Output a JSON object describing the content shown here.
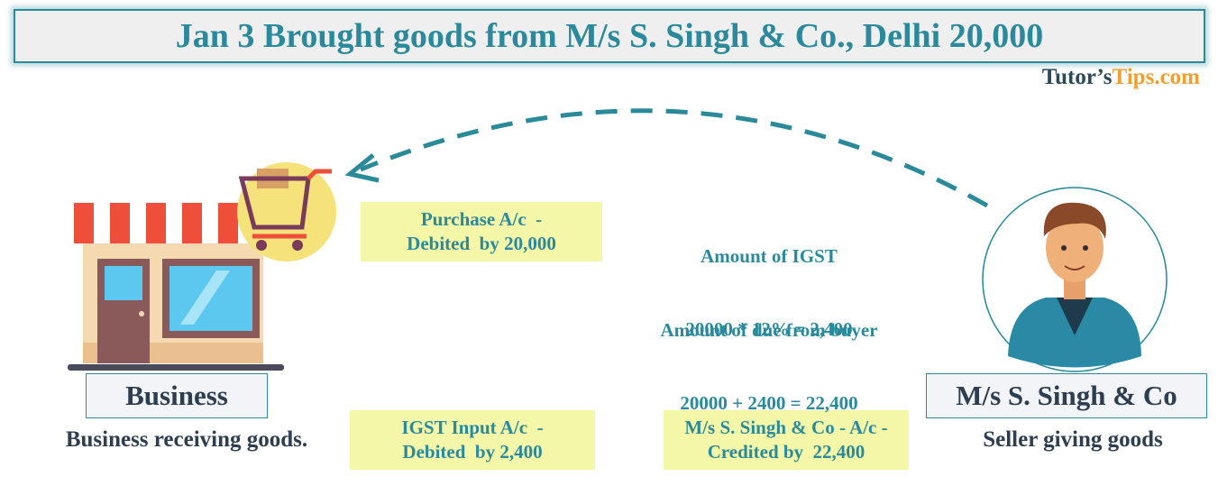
{
  "header": {
    "title": "Jan 3 Brought goods from M/s S. Singh & Co., Delhi 20,000"
  },
  "brand": {
    "prefix": "Tutor’s",
    "suffix": "Tips.com"
  },
  "nodes": [
    {
      "label": "Business",
      "caption": "Business receiving goods."
    },
    {
      "label": "M/s S. Singh & Co",
      "caption": "Seller giving goods"
    }
  ],
  "entries": [
    {
      "lines": [
        "Purchase A/c  -",
        "Debited  by 20,000"
      ]
    },
    {
      "lines": [
        "IGST Input A/c  -",
        "Debited  by 2,400"
      ]
    },
    {
      "lines": [
        "M/s S. Singh & Co - A/c -",
        "Credited by  22,400"
      ]
    }
  ],
  "calculations": [
    {
      "lines": [
        "Amount of IGST",
        "20000 * 12% = 2,400"
      ]
    },
    {
      "lines": [
        "Amount of due from buyer",
        "20000 + 2400 = 22,400"
      ]
    }
  ]
}
